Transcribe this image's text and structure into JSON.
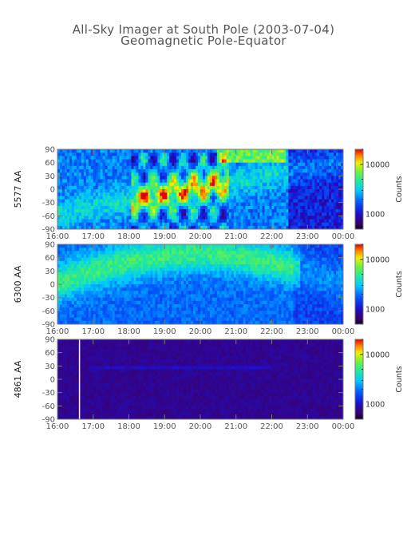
{
  "title": "All-Sky Imager at South Pole (2003-07-04)",
  "subtitle": "Geomagnetic Pole-Equator",
  "chart_data": [
    {
      "type": "heatmap",
      "ylabel": "5577 AA",
      "x_ticks": [
        "16:00",
        "17:00",
        "18:00",
        "19:00",
        "20:00",
        "21:00",
        "22:00",
        "23:00",
        "00:00"
      ],
      "y_ticks": [
        "90",
        "60",
        "30",
        "0",
        "-30",
        "-60",
        "-90"
      ],
      "ylim": [
        -90,
        90
      ],
      "colorbar": {
        "label": "Counts",
        "ticks": [
          "10000",
          "1000"
        ],
        "scale": "log"
      }
    },
    {
      "type": "heatmap",
      "ylabel": "6300 AA",
      "x_ticks": [
        "16:00",
        "17:00",
        "18:00",
        "19:00",
        "20:00",
        "21:00",
        "22:00",
        "23:00",
        "00:00"
      ],
      "y_ticks": [
        "90",
        "60",
        "30",
        "0",
        "-30",
        "-60",
        "-90"
      ],
      "ylim": [
        -90,
        90
      ],
      "colorbar": {
        "label": "Counts",
        "ticks": [
          "10000",
          "1000"
        ],
        "scale": "log"
      }
    },
    {
      "type": "heatmap",
      "ylabel": "4861 AA",
      "x_ticks": [
        "16:00",
        "17:00",
        "18:00",
        "19:00",
        "20:00",
        "21:00",
        "22:00",
        "23:00",
        "00:00"
      ],
      "y_ticks": [
        "90",
        "60",
        "30",
        "0",
        "-30",
        "-60",
        "-90"
      ],
      "ylim": [
        -90,
        90
      ],
      "colorbar": {
        "label": "Counts",
        "ticks": [
          "10000",
          "1000"
        ],
        "scale": "log"
      }
    }
  ]
}
